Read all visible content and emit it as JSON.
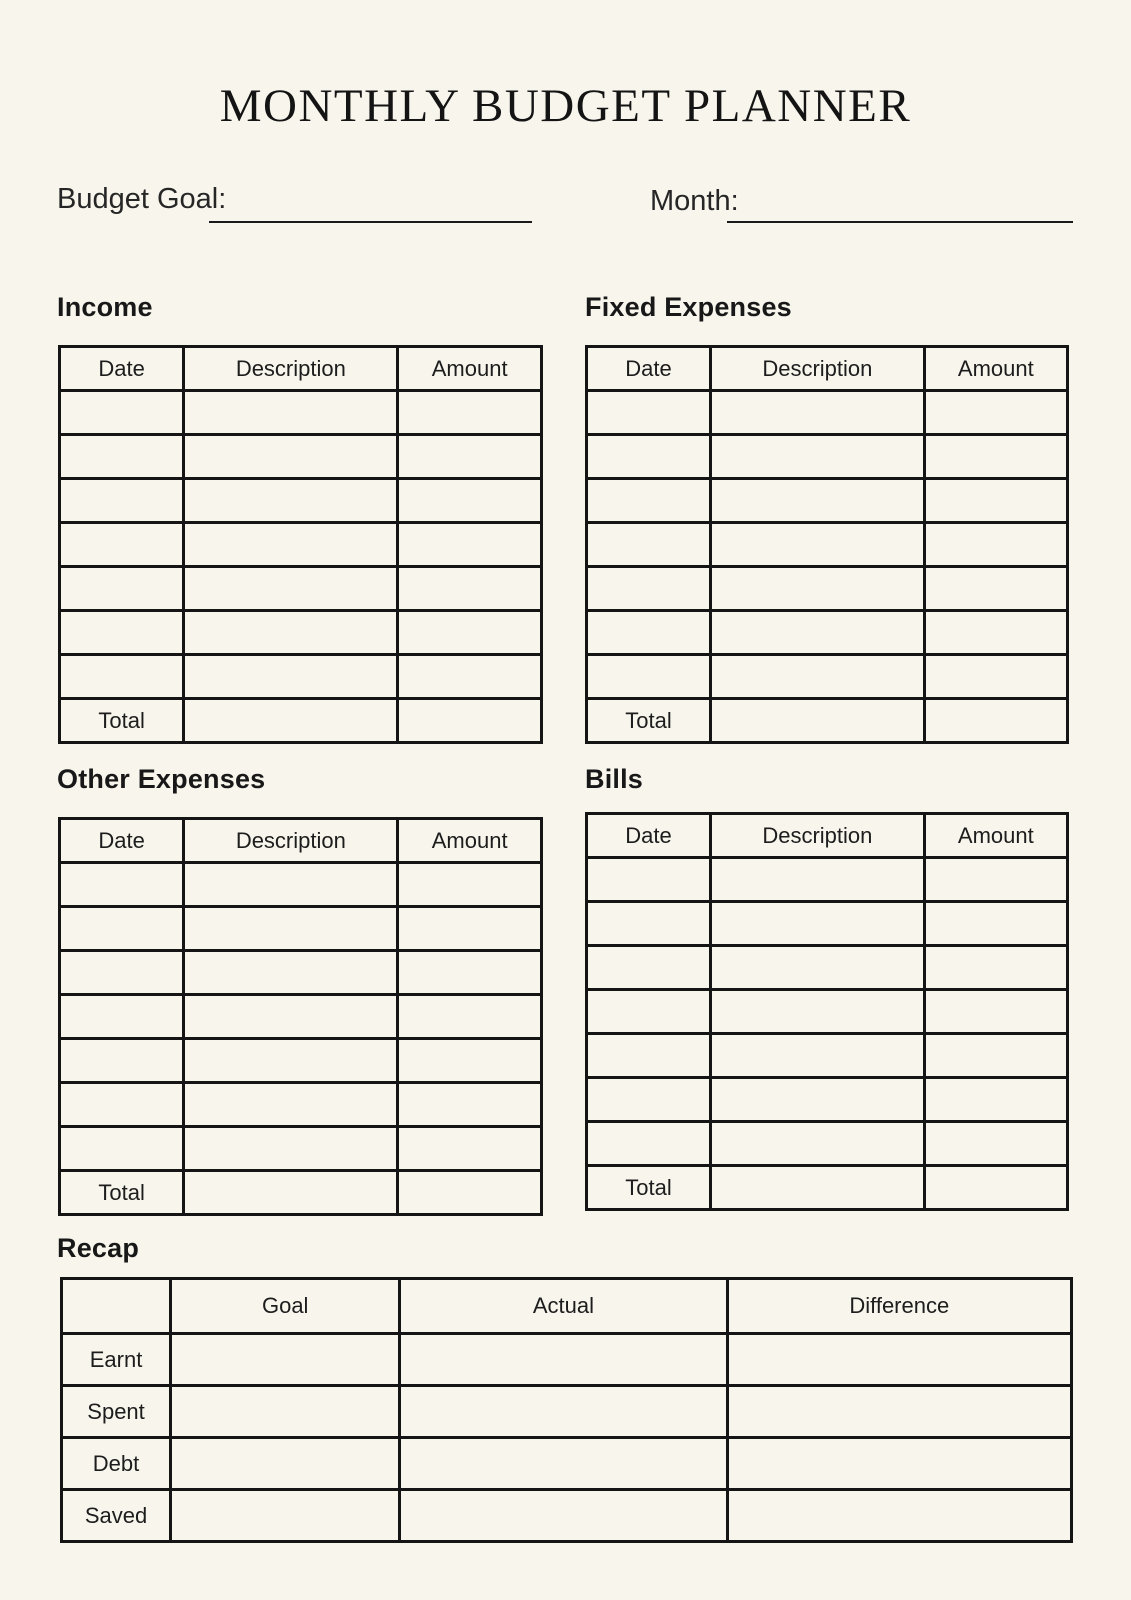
{
  "page": {
    "title": "MONTHLY BUDGET PLANNER"
  },
  "fields": {
    "budget_goal_label": "Budget Goal:",
    "month_label": "Month:"
  },
  "tables": {
    "income": {
      "title": "Income",
      "columns": [
        "Date",
        "Description",
        "Amount"
      ],
      "empty_row_count": 7,
      "total_label": "Total"
    },
    "fixed_expenses": {
      "title": "Fixed Expenses",
      "columns": [
        "Date",
        "Description",
        "Amount"
      ],
      "empty_row_count": 7,
      "total_label": "Total"
    },
    "other_expenses": {
      "title": "Other Expenses",
      "columns": [
        "Date",
        "Description",
        "Amount"
      ],
      "empty_row_count": 7,
      "total_label": "Total"
    },
    "bills": {
      "title": "Bills",
      "columns": [
        "Date",
        "Description",
        "Amount"
      ],
      "empty_row_count": 7,
      "total_label": "Total"
    }
  },
  "recap": {
    "title": "Recap",
    "columns": [
      "Goal",
      "Actual",
      "Difference"
    ],
    "rows": [
      "Earnt",
      "Spent",
      "Debt",
      "Saved"
    ]
  },
  "colors": {
    "background": "#F8F5EC",
    "ink": "#1C1C1C",
    "border": "#151515"
  }
}
